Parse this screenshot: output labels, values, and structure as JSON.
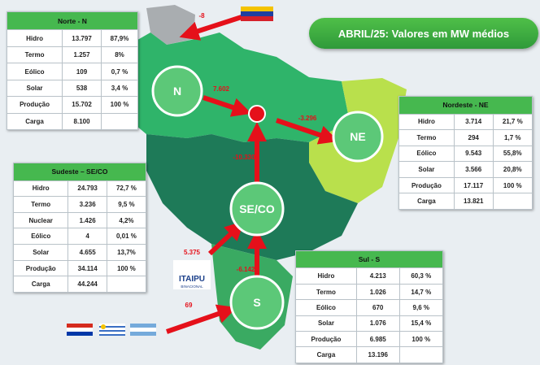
{
  "title": "ABRIL/25: Valores em MW médios",
  "tables": [
    {
      "header": "Norte - N",
      "rows": [
        [
          "Hidro",
          "13.797",
          "87,9%"
        ],
        [
          "Termo",
          "1.257",
          "8%"
        ],
        [
          "Eólico",
          "109",
          "0,7 %"
        ],
        [
          "Solar",
          "538",
          "3,4 %"
        ],
        [
          "Produção",
          "15.702",
          "100 %"
        ],
        [
          "Carga",
          "8.100"
        ]
      ]
    },
    {
      "header": "Nordeste - NE",
      "rows": [
        [
          "Hidro",
          "3.714",
          "21,7 %"
        ],
        [
          "Termo",
          "294",
          "1,7 %"
        ],
        [
          "Eólico",
          "9.543",
          "55,8%"
        ],
        [
          "Solar",
          "3.566",
          "20,8%"
        ],
        [
          "Produção",
          "17.117",
          "100 %"
        ],
        [
          "Carga",
          "13.821"
        ]
      ]
    },
    {
      "header": "Sudeste – SE/CO",
      "rows": [
        [
          "Hidro",
          "24.793",
          "72,7 %"
        ],
        [
          "Termo",
          "3.236",
          "9,5 %"
        ],
        [
          "Nuclear",
          "1.426",
          "4,2%"
        ],
        [
          "Eólico",
          "4",
          "0,01 %"
        ],
        [
          "Solar",
          "4.655",
          "13,7%"
        ],
        [
          "Produção",
          "34.114",
          "100 %"
        ],
        [
          "Carga",
          "44.244"
        ]
      ]
    },
    {
      "header": "Sul - S",
      "rows": [
        [
          "Hidro",
          "4.213",
          "60,3 %"
        ],
        [
          "Termo",
          "1.026",
          "14,7 %"
        ],
        [
          "Eólico",
          "670",
          "9,6 %"
        ],
        [
          "Solar",
          "1.076",
          "15,4 %"
        ],
        [
          "Produção",
          "6.985",
          "100 %"
        ],
        [
          "Carga",
          "13.196"
        ]
      ]
    }
  ],
  "nodes": [
    "N",
    "NE",
    "SE/CO",
    "S"
  ],
  "flows": [
    "-8",
    "7.602",
    "-3.296",
    "-10.330",
    "5.375",
    "-6.142",
    "69"
  ],
  "logo": {
    "name": "ITAIPU",
    "sub": "BINACIONAL"
  }
}
